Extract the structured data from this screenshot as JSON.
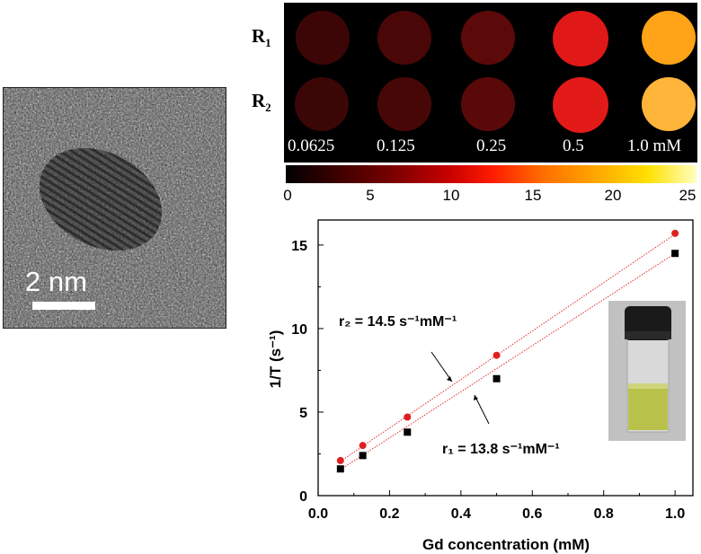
{
  "tem": {
    "scalebar_label": "2 nm"
  },
  "mri": {
    "row_labels": [
      {
        "letter": "R",
        "sub": "1"
      },
      {
        "letter": "R",
        "sub": "2"
      }
    ],
    "concentrations": [
      "0.0625",
      "0.125",
      "0.25",
      "0.5",
      "1.0 mM"
    ],
    "phantom_colors": {
      "R1": [
        "#3c0606",
        "#4a0707",
        "#5c0909",
        "#e01818",
        "#ffa318"
      ],
      "R2": [
        "#3a0606",
        "#480707",
        "#5a0909",
        "#e21a18",
        "#ffb43a"
      ]
    },
    "colorbar": {
      "ticks": [
        "0",
        "5",
        "10",
        "15",
        "20",
        "25"
      ]
    }
  },
  "chart_data": {
    "type": "scatter",
    "xlabel": "Gd concentration (mM)",
    "ylabel": "1/T (s⁻¹)",
    "xlim": [
      0.0,
      1.05
    ],
    "ylim": [
      0,
      16.5
    ],
    "xticks": [
      "0.0",
      "0.2",
      "0.4",
      "0.6",
      "0.8",
      "1.0"
    ],
    "yticks": [
      "0",
      "5",
      "10",
      "15"
    ],
    "series": [
      {
        "name": "r2",
        "marker": "circle",
        "color": "#e02020",
        "x": [
          0.0625,
          0.125,
          0.25,
          0.5,
          1.0
        ],
        "y": [
          2.1,
          3.0,
          4.7,
          8.4,
          15.7
        ],
        "fit": {
          "slope": 14.5,
          "intercept": 1.15
        }
      },
      {
        "name": "r1",
        "marker": "square",
        "color": "#000000",
        "x": [
          0.0625,
          0.125,
          0.25,
          0.5,
          1.0
        ],
        "y": [
          1.6,
          2.4,
          3.8,
          7.0,
          14.5
        ],
        "fit": {
          "slope": 13.8,
          "intercept": 0.7
        }
      }
    ],
    "annotations": [
      {
        "text": "r₂ = 14.5 s⁻¹mM⁻¹"
      },
      {
        "text": "r₁ = 13.8 s⁻¹mM⁻¹"
      }
    ]
  }
}
